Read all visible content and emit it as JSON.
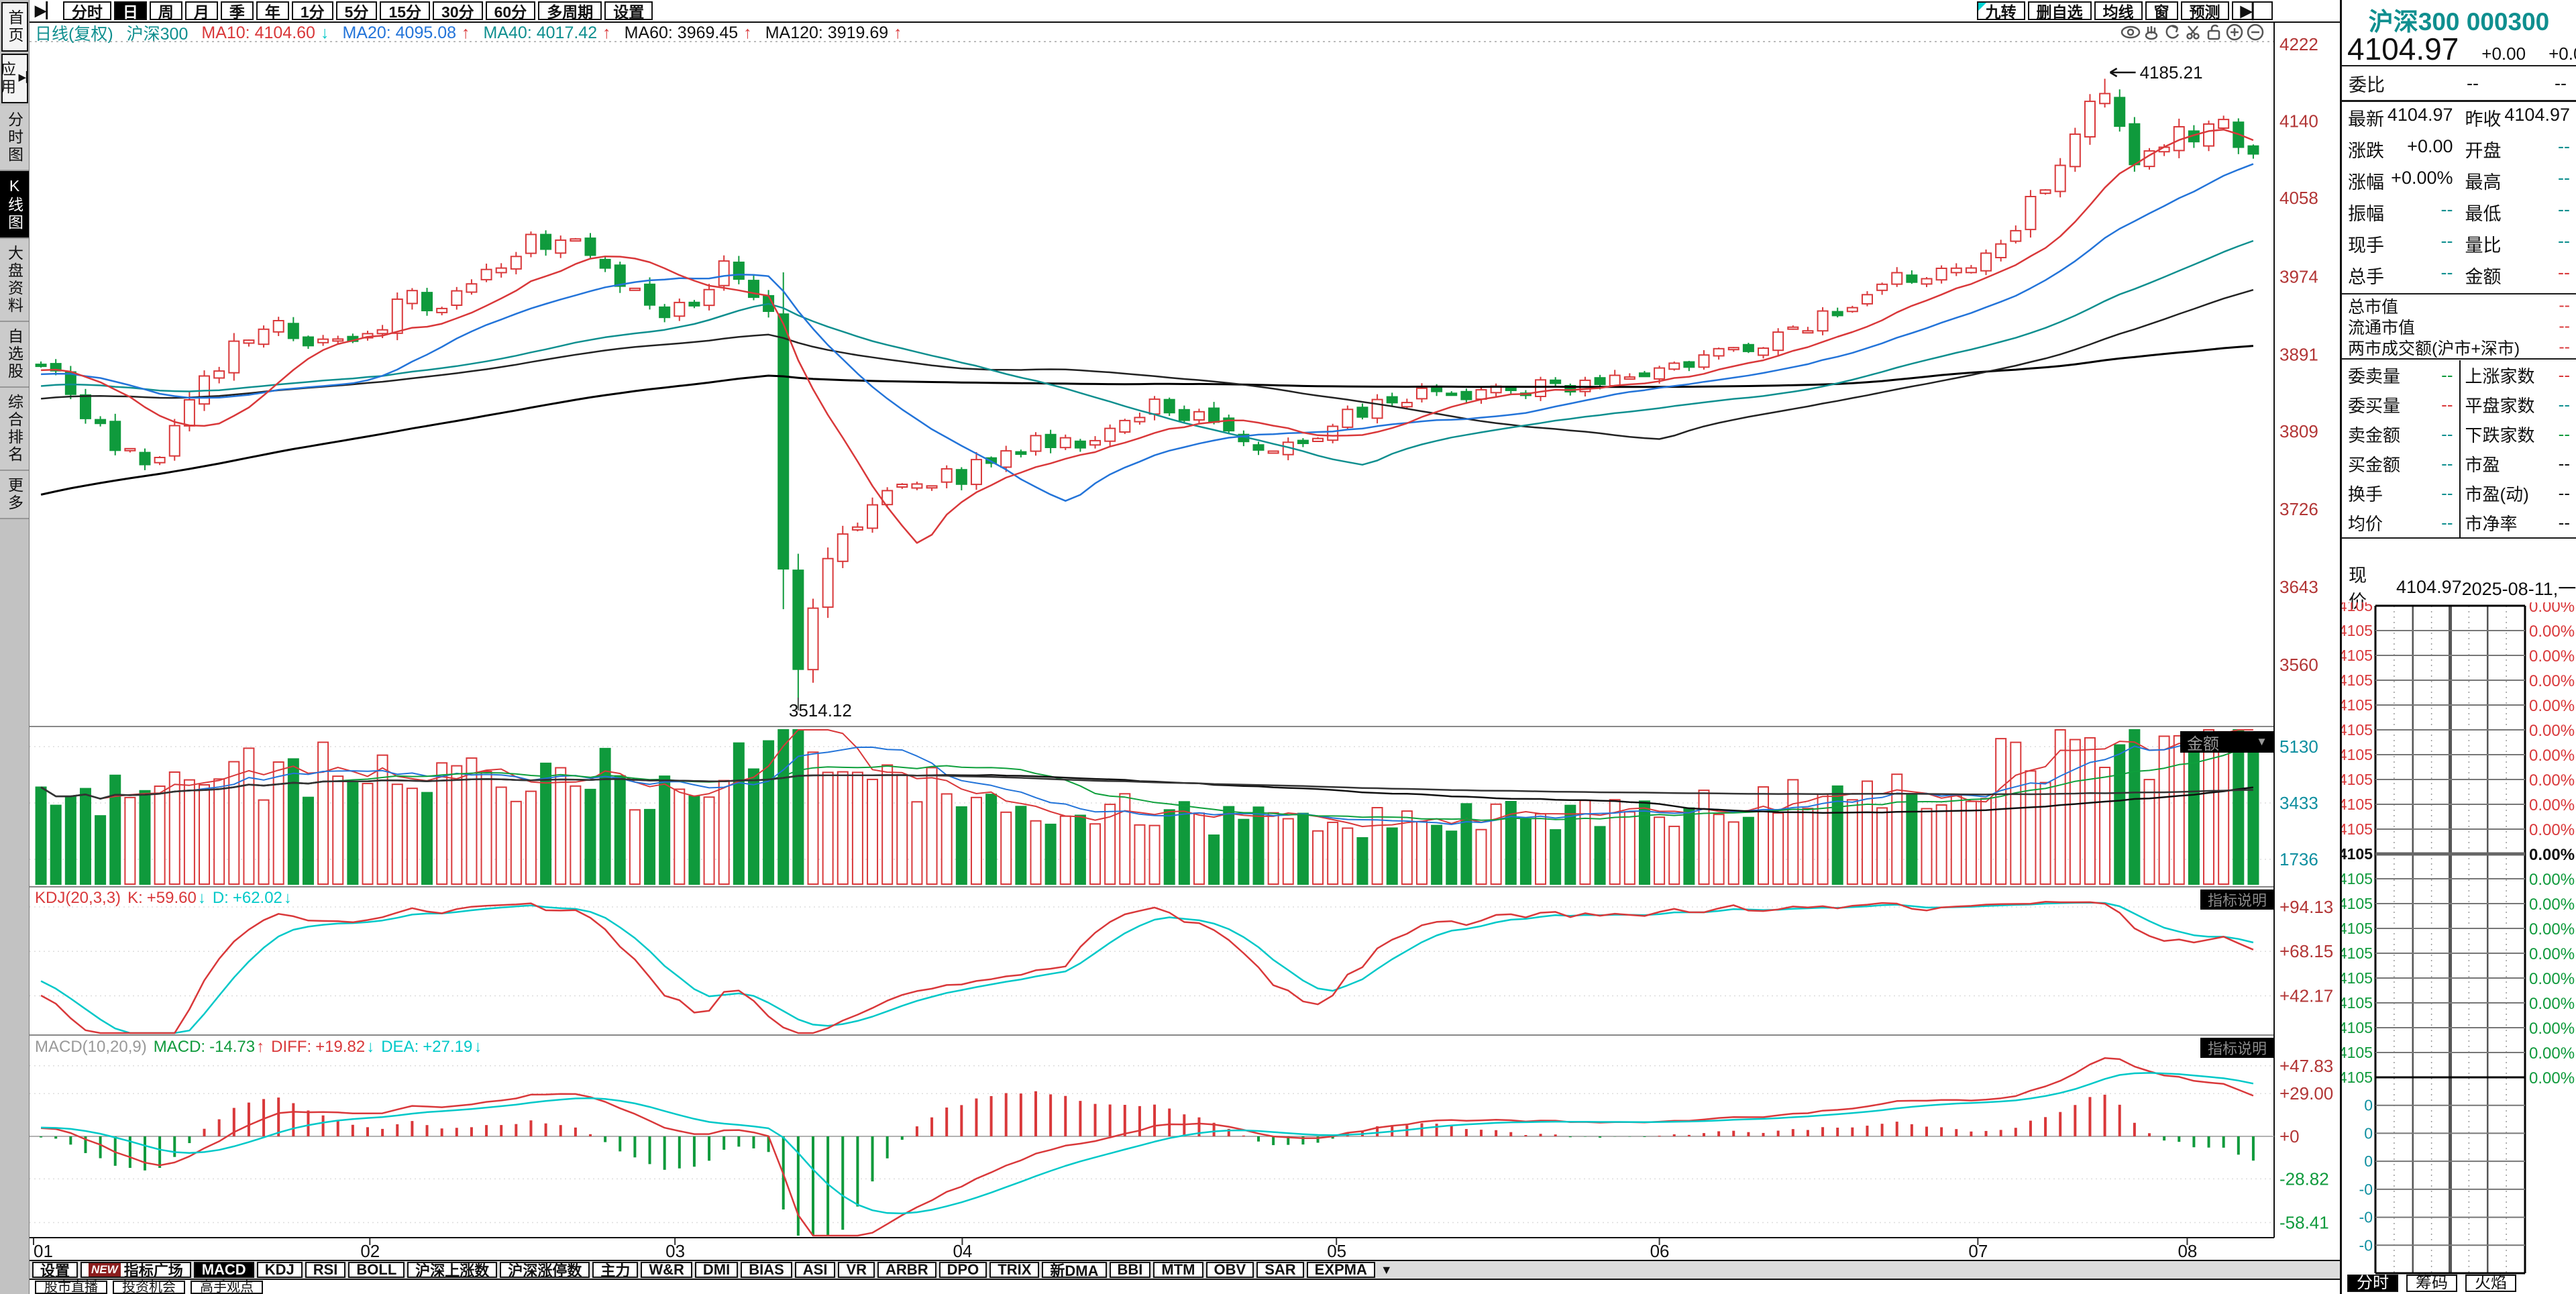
{
  "icons": {
    "expand": "▶▏",
    "up_arrow": "↑",
    "down_arrow": "↓",
    "dropdown": "▼",
    "left_arrow": "←",
    "scroll_down": "▼"
  },
  "toolbar": {
    "periods": [
      "分时",
      "日",
      "周",
      "月",
      "季",
      "年",
      "1分",
      "5分",
      "15分",
      "30分",
      "60分",
      "多周期",
      "设置"
    ],
    "active_period": "日",
    "right_buttons": [
      "九转",
      "删自选",
      "均线",
      "窗",
      "预测"
    ]
  },
  "sidebar": {
    "items": [
      {
        "label": "首页",
        "boxed": true
      },
      {
        "label": "应用",
        "boxed": true,
        "icon": true
      },
      {
        "label": "分时图"
      },
      {
        "label": "K线图",
        "active": true
      },
      {
        "label": "大盘资料"
      },
      {
        "label": "自选股"
      },
      {
        "label": "综合排名"
      },
      {
        "label": "更多"
      }
    ]
  },
  "chart_header": {
    "period_label": "日线(复权)",
    "symbol": "沪深300",
    "ma_items": [
      {
        "label": "MA10:",
        "value": "4104.60",
        "color": "#d9383a",
        "arrow": "↓",
        "arrow_color": "#00c8c8"
      },
      {
        "label": "MA20:",
        "value": "4095.08",
        "color": "#2374d9",
        "arrow": "↑",
        "arrow_color": "#d9383a"
      },
      {
        "label": "MA40:",
        "value": "4017.42",
        "color": "#0f8f8f",
        "arrow": "↑",
        "arrow_color": "#d9383a"
      },
      {
        "label": "MA60:",
        "value": "3969.45",
        "color": "#111111",
        "arrow": "↑",
        "arrow_color": "#d9383a"
      },
      {
        "label": "MA120:",
        "value": "3919.69",
        "color": "#111111",
        "arrow": "↑",
        "arrow_color": "#d9383a"
      }
    ]
  },
  "volume_pane": {
    "dropdown_label": "金额"
  },
  "kdj_pane": {
    "title": "KDJ(20,3,3)",
    "k_label": "K:",
    "k_value": "+59.60",
    "k_arrow": "↓",
    "d_label": "D:",
    "d_value": "+62.02",
    "d_arrow": "↓",
    "info_button": "指标说明"
  },
  "macd_pane": {
    "title": "MACD(10,20,9)",
    "macd_label": "MACD:",
    "macd_value": "-14.73",
    "macd_arrow": "↑",
    "diff_label": "DIFF:",
    "diff_value": "+19.82",
    "diff_arrow": "↓",
    "dea_label": "DEA:",
    "dea_value": "+27.19",
    "dea_arrow": "↓",
    "info_button": "指标说明"
  },
  "indicator_tabs": {
    "items": [
      {
        "label": "设置"
      },
      {
        "label": "指标广场",
        "badge": "NEW"
      },
      {
        "label": "MACD",
        "active": true
      },
      {
        "label": "KDJ"
      },
      {
        "label": "RSI"
      },
      {
        "label": "BOLL"
      },
      {
        "label": "沪深上涨数"
      },
      {
        "label": "沪深涨停数"
      },
      {
        "label": "主力"
      },
      {
        "label": "W&R"
      },
      {
        "label": "DMI"
      },
      {
        "label": "BIAS"
      },
      {
        "label": "ASI"
      },
      {
        "label": "VR"
      },
      {
        "label": "ARBR"
      },
      {
        "label": "DPO"
      },
      {
        "label": "TRIX"
      },
      {
        "label": "新DMA"
      },
      {
        "label": "BBI"
      },
      {
        "label": "MTM"
      },
      {
        "label": "OBV"
      },
      {
        "label": "SAR"
      },
      {
        "label": "EXPMA"
      }
    ]
  },
  "footer": {
    "items": [
      "股市直播",
      "投资机会",
      "高手观点"
    ]
  },
  "quote_panel": {
    "name": "沪深300",
    "code": "000300",
    "price": "4104.97",
    "change": "+0.00",
    "change_pct": "+0.00%",
    "weibi": {
      "label": "委比",
      "v1": "--",
      "v2": "--"
    },
    "grid1": [
      [
        "最新",
        "4104.97",
        "black",
        "昨收",
        "4104.97",
        "black"
      ],
      [
        "涨跌",
        "+0.00",
        "black",
        "开盘",
        "--",
        "teal"
      ],
      [
        "涨幅",
        "+0.00%",
        "black",
        "最高",
        "--",
        "teal"
      ],
      [
        "振幅",
        "--",
        "teal",
        "最低",
        "--",
        "teal"
      ],
      [
        "现手",
        "--",
        "teal",
        "量比",
        "--",
        "teal"
      ],
      [
        "总手",
        "--",
        "teal",
        "金额",
        "--",
        "red"
      ]
    ],
    "rows_full": [
      [
        "总市值",
        "--",
        "red"
      ],
      [
        "流通市值",
        "--",
        "red"
      ],
      [
        "两市成交额(沪市+深市)",
        "--",
        "red"
      ]
    ],
    "grid2_left": [
      [
        "委卖量",
        "--",
        "green"
      ],
      [
        "委买量",
        "--",
        "red"
      ],
      [
        "卖金额",
        "--",
        "teal"
      ],
      [
        "买金额",
        "--",
        "teal"
      ],
      [
        "换手",
        "--",
        "teal"
      ],
      [
        "均价",
        "--",
        "teal"
      ]
    ],
    "grid2_right": [
      [
        "上涨家数",
        "--",
        "red"
      ],
      [
        "平盘家数",
        "--",
        "teal"
      ],
      [
        "下跌家数",
        "--",
        "green"
      ],
      [
        "市盈",
        "--",
        "black"
      ],
      [
        "市盈(动)",
        "--",
        "black"
      ],
      [
        "市净率",
        "--",
        "black"
      ]
    ],
    "current": {
      "label": "现价",
      "price": "4104.97",
      "date": "2025-08-11,一"
    },
    "mini_chart": {
      "price_label": "4105",
      "pct_label": "0.00%",
      "rows_above": 10,
      "rows_below": 9,
      "vol_labels": [
        "0",
        "0",
        "0",
        "-0",
        "-0",
        "-0"
      ]
    },
    "tabs": [
      {
        "label": "分时",
        "active": true
      },
      {
        "label": "筹码"
      },
      {
        "label": "火焰"
      }
    ]
  },
  "chart_data": {
    "type": "candlestick+volume+kdj+macd",
    "symbol": "沪深300",
    "num_candles": 150,
    "history_days": 120,
    "prev_close": 4104.97,
    "last_close": 4104.97,
    "high_point": 4185.21,
    "low_point": 3514.12,
    "price_axis": [
      {
        "v": 4222,
        "t": "4222"
      },
      {
        "v": 4140,
        "t": "4140"
      },
      {
        "v": 4058,
        "t": "4058"
      },
      {
        "v": 3974,
        "t": "3974"
      },
      {
        "v": 3891,
        "t": "3891"
      },
      {
        "v": 3809,
        "t": "3809"
      },
      {
        "v": 3726,
        "t": "3726"
      },
      {
        "v": 3643,
        "t": "3643"
      },
      {
        "v": 3560,
        "t": "3560"
      }
    ],
    "volume_axis": [
      {
        "v": 5130,
        "t": "5130"
      },
      {
        "v": 3433,
        "t": "3433"
      },
      {
        "v": 1736,
        "t": "1736"
      }
    ],
    "kdj_axis": [
      {
        "v": 94.13,
        "t": "+94.13"
      },
      {
        "v": 68.15,
        "t": "+68.15"
      },
      {
        "v": 42.17,
        "t": "+42.17"
      }
    ],
    "macd_axis": [
      {
        "v": 47.83,
        "t": "+47.83",
        "c": "#b23535"
      },
      {
        "v": 29.0,
        "t": "+29.00",
        "c": "#b23535"
      },
      {
        "v": 0,
        "t": "+0",
        "c": "#b23535"
      },
      {
        "v": -28.82,
        "t": "-28.82",
        "c": "#0f9a3c"
      },
      {
        "v": -58.41,
        "t": "-58.41",
        "c": "#0f9a3c"
      }
    ],
    "month_fractions": [
      [
        "01",
        0.0
      ],
      [
        "02",
        0.151
      ],
      [
        "03",
        0.288
      ],
      [
        "04",
        0.417
      ],
      [
        "05",
        0.585
      ],
      [
        "06",
        0.73
      ],
      [
        "07",
        0.873
      ],
      [
        "08",
        0.967
      ]
    ],
    "history_anchors": [
      [
        0,
        3450
      ],
      [
        0.35,
        3720
      ],
      [
        0.55,
        3810
      ],
      [
        0.8,
        3852
      ],
      [
        1,
        3878
      ]
    ],
    "close_anchors": [
      [
        0,
        3880
      ],
      [
        0.01,
        3856
      ],
      [
        0.022,
        3830
      ],
      [
        0.035,
        3792
      ],
      [
        0.048,
        3768
      ],
      [
        0.06,
        3815
      ],
      [
        0.075,
        3868
      ],
      [
        0.09,
        3904
      ],
      [
        0.105,
        3926
      ],
      [
        0.12,
        3896
      ],
      [
        0.14,
        3909
      ],
      [
        0.151,
        3921
      ],
      [
        0.165,
        3954
      ],
      [
        0.18,
        3941
      ],
      [
        0.2,
        3976
      ],
      [
        0.22,
        4006
      ],
      [
        0.235,
        4018
      ],
      [
        0.25,
        3993
      ],
      [
        0.265,
        3956
      ],
      [
        0.28,
        3929
      ],
      [
        0.288,
        3936
      ],
      [
        0.3,
        3961
      ],
      [
        0.31,
        3991
      ],
      [
        0.322,
        3963
      ],
      [
        0.33,
        3928
      ],
      [
        0.3345,
        3706
      ],
      [
        0.339,
        3536
      ],
      [
        0.344,
        3566
      ],
      [
        0.35,
        3634
      ],
      [
        0.36,
        3684
      ],
      [
        0.372,
        3722
      ],
      [
        0.385,
        3748
      ],
      [
        0.4,
        3757
      ],
      [
        0.417,
        3763
      ],
      [
        0.435,
        3779
      ],
      [
        0.455,
        3799
      ],
      [
        0.47,
        3789
      ],
      [
        0.49,
        3813
      ],
      [
        0.505,
        3843
      ],
      [
        0.52,
        3829
      ],
      [
        0.54,
        3796
      ],
      [
        0.56,
        3789
      ],
      [
        0.585,
        3823
      ],
      [
        0.605,
        3839
      ],
      [
        0.625,
        3853
      ],
      [
        0.645,
        3847
      ],
      [
        0.665,
        3859
      ],
      [
        0.685,
        3853
      ],
      [
        0.705,
        3861
      ],
      [
        0.73,
        3869
      ],
      [
        0.75,
        3881
      ],
      [
        0.77,
        3896
      ],
      [
        0.79,
        3913
      ],
      [
        0.81,
        3933
      ],
      [
        0.83,
        3959
      ],
      [
        0.85,
        3979
      ],
      [
        0.873,
        3993
      ],
      [
        0.885,
        4016
      ],
      [
        0.9,
        4053
      ],
      [
        0.915,
        4106
      ],
      [
        0.928,
        4159
      ],
      [
        0.934,
        4177
      ],
      [
        0.94,
        4121
      ],
      [
        0.947,
        4087
      ],
      [
        0.955,
        4113
      ],
      [
        0.965,
        4126
      ],
      [
        0.975,
        4119
      ],
      [
        0.985,
        4133
      ],
      [
        1,
        4105
      ]
    ],
    "volume_anchors": [
      [
        0,
        3100
      ],
      [
        0.05,
        2700
      ],
      [
        0.1,
        3600
      ],
      [
        0.151,
        3900
      ],
      [
        0.18,
        3300
      ],
      [
        0.23,
        3800
      ],
      [
        0.3,
        2900
      ],
      [
        0.335,
        5300
      ],
      [
        0.345,
        5600
      ],
      [
        0.37,
        4100
      ],
      [
        0.43,
        2500
      ],
      [
        0.5,
        2300
      ],
      [
        0.56,
        2100
      ],
      [
        0.63,
        2000
      ],
      [
        0.7,
        2200
      ],
      [
        0.75,
        2500
      ],
      [
        0.8,
        2900
      ],
      [
        0.85,
        3300
      ],
      [
        0.9,
        4200
      ],
      [
        0.934,
        5000
      ],
      [
        0.95,
        4600
      ],
      [
        1,
        5200
      ]
    ]
  }
}
